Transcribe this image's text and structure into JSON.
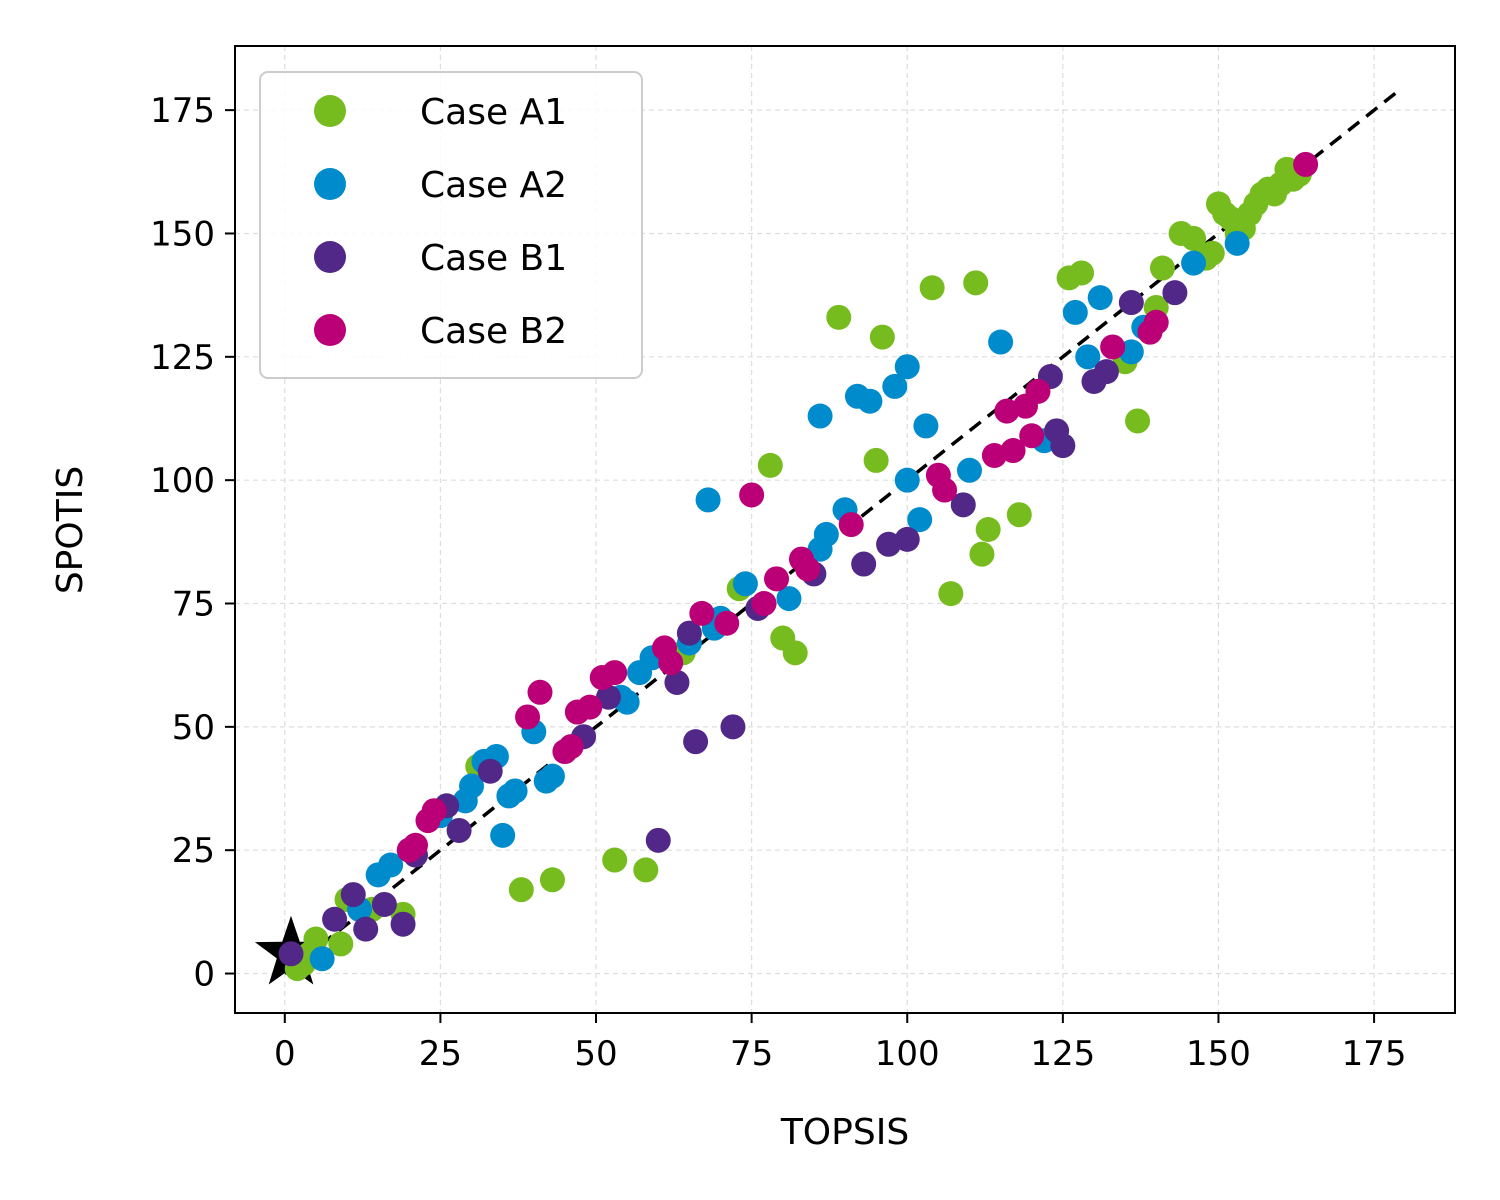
{
  "chart_data": {
    "type": "scatter",
    "title": "",
    "xlabel": "TOPSIS",
    "ylabel": "SPOTIS",
    "xlim": [
      -8,
      188
    ],
    "ylim": [
      -8,
      188
    ],
    "xticks": [
      0,
      25,
      50,
      75,
      100,
      125,
      150,
      175
    ],
    "yticks": [
      0,
      25,
      50,
      75,
      100,
      125,
      150,
      175
    ],
    "grid": true,
    "legend_position": "top-left",
    "reference_line": {
      "style": "dashed",
      "color": "#000000",
      "x": [
        0,
        179
      ],
      "y": [
        0,
        179
      ]
    },
    "marker_star": {
      "x": 1,
      "y": 4,
      "color": "#000000"
    },
    "series": [
      {
        "name": "Case A1",
        "color": "#77bc1f",
        "points": [
          [
            2,
            1
          ],
          [
            3,
            2
          ],
          [
            4,
            4
          ],
          [
            5,
            7
          ],
          [
            9,
            6
          ],
          [
            10,
            15
          ],
          [
            14,
            13
          ],
          [
            19,
            12
          ],
          [
            31,
            42
          ],
          [
            38,
            17
          ],
          [
            43,
            19
          ],
          [
            53,
            23
          ],
          [
            58,
            21
          ],
          [
            64,
            65
          ],
          [
            73,
            78
          ],
          [
            78,
            103
          ],
          [
            80,
            68
          ],
          [
            82,
            65
          ],
          [
            89,
            133
          ],
          [
            95,
            104
          ],
          [
            96,
            129
          ],
          [
            104,
            139
          ],
          [
            107,
            77
          ],
          [
            111,
            140
          ],
          [
            112,
            85
          ],
          [
            113,
            90
          ],
          [
            118,
            93
          ],
          [
            126,
            141
          ],
          [
            128,
            142
          ],
          [
            135,
            124
          ],
          [
            137,
            112
          ],
          [
            140,
            135
          ],
          [
            141,
            143
          ],
          [
            144,
            150
          ],
          [
            146,
            149
          ],
          [
            148,
            145
          ],
          [
            149,
            146
          ],
          [
            150,
            156
          ],
          [
            151,
            154
          ],
          [
            152,
            153
          ],
          [
            153,
            150
          ],
          [
            154,
            151
          ],
          [
            155,
            154
          ],
          [
            156,
            156
          ],
          [
            157,
            158
          ],
          [
            158,
            159
          ],
          [
            159,
            158
          ],
          [
            160,
            160
          ],
          [
            161,
            163
          ],
          [
            162,
            161
          ],
          [
            163,
            162
          ]
        ]
      },
      {
        "name": "Case A2",
        "color": "#008ccc",
        "points": [
          [
            6,
            3
          ],
          [
            12,
            13
          ],
          [
            15,
            20
          ],
          [
            17,
            22
          ],
          [
            20,
            25
          ],
          [
            25,
            32
          ],
          [
            29,
            35
          ],
          [
            30,
            38
          ],
          [
            32,
            43
          ],
          [
            34,
            44
          ],
          [
            35,
            28
          ],
          [
            36,
            36
          ],
          [
            37,
            37
          ],
          [
            40,
            49
          ],
          [
            42,
            39
          ],
          [
            43,
            40
          ],
          [
            54,
            56
          ],
          [
            55,
            55
          ],
          [
            57,
            61
          ],
          [
            59,
            64
          ],
          [
            65,
            67
          ],
          [
            68,
            96
          ],
          [
            69,
            70
          ],
          [
            70,
            72
          ],
          [
            74,
            79
          ],
          [
            81,
            76
          ],
          [
            86,
            113
          ],
          [
            86,
            86
          ],
          [
            87,
            89
          ],
          [
            90,
            94
          ],
          [
            92,
            117
          ],
          [
            94,
            116
          ],
          [
            98,
            119
          ],
          [
            100,
            123
          ],
          [
            100,
            100
          ],
          [
            102,
            92
          ],
          [
            103,
            111
          ],
          [
            110,
            102
          ],
          [
            115,
            128
          ],
          [
            122,
            108
          ],
          [
            127,
            134
          ],
          [
            129,
            125
          ],
          [
            131,
            137
          ],
          [
            136,
            126
          ],
          [
            138,
            131
          ],
          [
            146,
            144
          ],
          [
            153,
            148
          ]
        ]
      },
      {
        "name": "Case B1",
        "color": "#512888",
        "points": [
          [
            1,
            4
          ],
          [
            8,
            11
          ],
          [
            11,
            16
          ],
          [
            13,
            9
          ],
          [
            16,
            14
          ],
          [
            19,
            10
          ],
          [
            21,
            24
          ],
          [
            26,
            34
          ],
          [
            28,
            29
          ],
          [
            33,
            41
          ],
          [
            48,
            48
          ],
          [
            52,
            56
          ],
          [
            60,
            27
          ],
          [
            63,
            59
          ],
          [
            65,
            69
          ],
          [
            66,
            47
          ],
          [
            72,
            50
          ],
          [
            76,
            74
          ],
          [
            85,
            81
          ],
          [
            93,
            83
          ],
          [
            97,
            87
          ],
          [
            100,
            88
          ],
          [
            109,
            95
          ],
          [
            124,
            110
          ],
          [
            125,
            107
          ],
          [
            123,
            121
          ],
          [
            130,
            120
          ],
          [
            132,
            122
          ],
          [
            136,
            136
          ],
          [
            143,
            138
          ]
        ]
      },
      {
        "name": "Case B2",
        "color": "#bb0077",
        "points": [
          [
            20,
            25
          ],
          [
            21,
            26
          ],
          [
            23,
            31
          ],
          [
            24,
            33
          ],
          [
            39,
            52
          ],
          [
            41,
            57
          ],
          [
            45,
            45
          ],
          [
            46,
            46
          ],
          [
            47,
            53
          ],
          [
            49,
            54
          ],
          [
            51,
            60
          ],
          [
            53,
            61
          ],
          [
            61,
            66
          ],
          [
            62,
            63
          ],
          [
            67,
            73
          ],
          [
            71,
            71
          ],
          [
            75,
            97
          ],
          [
            77,
            75
          ],
          [
            79,
            80
          ],
          [
            83,
            84
          ],
          [
            84,
            82
          ],
          [
            91,
            91
          ],
          [
            105,
            101
          ],
          [
            106,
            98
          ],
          [
            114,
            105
          ],
          [
            116,
            114
          ],
          [
            117,
            106
          ],
          [
            119,
            115
          ],
          [
            120,
            109
          ],
          [
            121,
            118
          ],
          [
            133,
            127
          ],
          [
            139,
            130
          ],
          [
            140,
            132
          ],
          [
            164,
            164
          ]
        ]
      }
    ]
  }
}
